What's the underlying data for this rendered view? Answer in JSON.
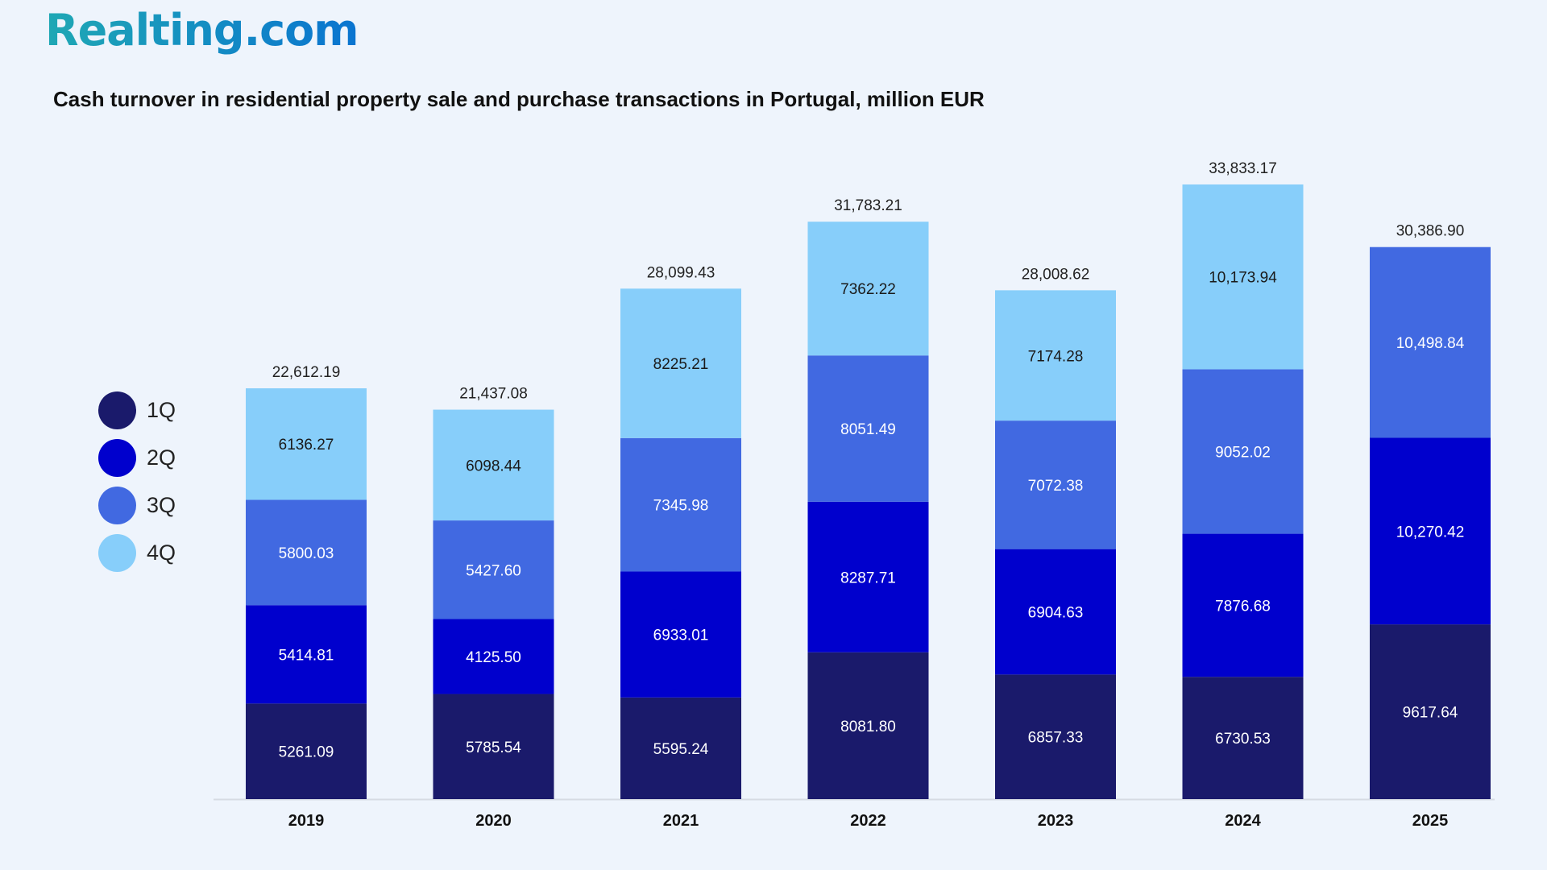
{
  "logo": "Realting.com",
  "chart_data": {
    "type": "bar",
    "stacked": true,
    "title": "Cash turnover in residential property sale and purchase transactions in Portugal, million EUR",
    "categories": [
      "2019",
      "2020",
      "2021",
      "2022",
      "2023",
      "2024",
      "2025"
    ],
    "series": [
      {
        "name": "1Q",
        "color": "#1a1a6b",
        "values": [
          5261.09,
          5785.54,
          5595.24,
          8081.8,
          6857.33,
          6730.53,
          9617.64
        ],
        "labels": [
          "5261.09",
          "5785.54",
          "5595.24",
          "8081.80",
          "6857.33",
          "6730.53",
          "9617.64"
        ]
      },
      {
        "name": "2Q",
        "color": "#0000cd",
        "values": [
          5414.81,
          4125.5,
          6933.01,
          8287.71,
          6904.63,
          7876.68,
          10270.42
        ],
        "labels": [
          "5414.81",
          "4125.50",
          "6933.01",
          "8287.71",
          "6904.63",
          "7876.68",
          "10,270.42"
        ]
      },
      {
        "name": "3Q",
        "color": "#4169e1",
        "values": [
          5800.03,
          5427.6,
          7345.98,
          8051.49,
          7072.38,
          9052.02,
          10498.84
        ],
        "labels": [
          "5800.03",
          "5427.60",
          "7345.98",
          "8051.49",
          "7072.38",
          "9052.02",
          "10,498.84"
        ]
      },
      {
        "name": "4Q",
        "color": "#87cefa",
        "values": [
          6136.27,
          6098.44,
          8225.21,
          7362.22,
          7174.28,
          10173.94,
          null
        ],
        "labels": [
          "6136.27",
          "6098.44",
          "8225.21",
          "7362.22",
          "7174.28",
          "10,173.94",
          null
        ]
      }
    ],
    "totals": [
      22612.19,
      21437.08,
      28099.43,
      31783.21,
      28008.62,
      33833.17,
      30386.9
    ],
    "total_labels": [
      "22,612.19",
      "21,437.08",
      "28,099.43",
      "31,783.21",
      "28,008.62",
      "33,833.17",
      "30,386.90"
    ],
    "ylim": [
      0,
      34000
    ],
    "grid": false,
    "legend_position": "left"
  }
}
